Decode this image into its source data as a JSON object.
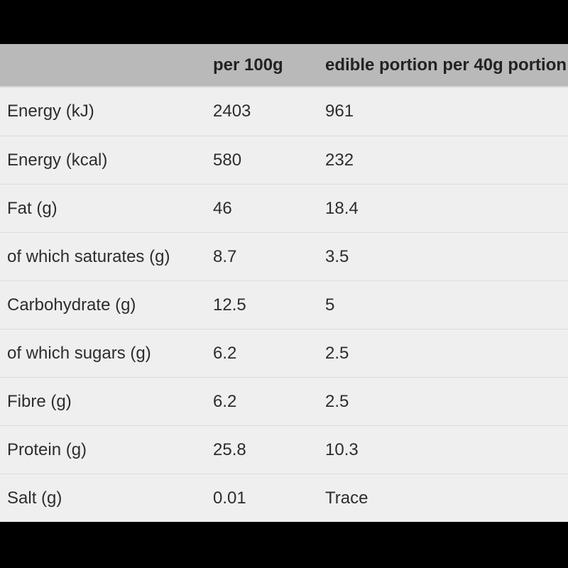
{
  "colors": {
    "letterbox": "#000000",
    "header_background": "#b9b9b9",
    "row_background": "#efefef",
    "divider": "#dcdcdc",
    "text": "#2d2d2d"
  },
  "nutrition_table": {
    "columns": [
      "",
      "per 100g",
      "edible portion per 40g portion"
    ],
    "rows": [
      {
        "label": "Energy (kJ)",
        "per_100g": "2403",
        "per_portion": "961"
      },
      {
        "label": "Energy (kcal)",
        "per_100g": "580",
        "per_portion": "232"
      },
      {
        "label": "Fat (g)",
        "per_100g": "46",
        "per_portion": "18.4"
      },
      {
        "label": "of which saturates (g)",
        "per_100g": "8.7",
        "per_portion": "3.5"
      },
      {
        "label": "Carbohydrate (g)",
        "per_100g": "12.5",
        "per_portion": "5"
      },
      {
        "label": "of which sugars (g)",
        "per_100g": "6.2",
        "per_portion": "2.5"
      },
      {
        "label": "Fibre (g)",
        "per_100g": "6.2",
        "per_portion": "2.5"
      },
      {
        "label": "Protein (g)",
        "per_100g": "25.8",
        "per_portion": "10.3"
      },
      {
        "label": "Salt (g)",
        "per_100g": "0.01",
        "per_portion": "Trace"
      }
    ]
  }
}
